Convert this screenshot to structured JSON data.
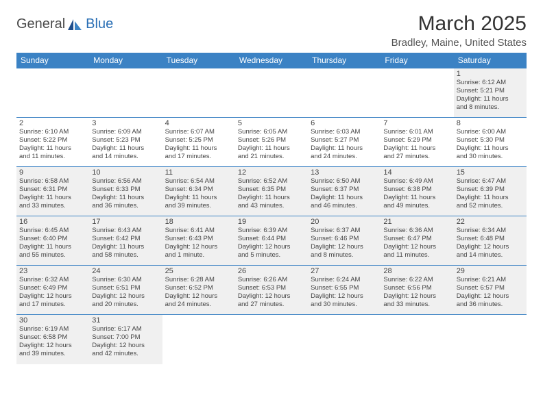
{
  "logo": {
    "part1": "General",
    "part2": "Blue"
  },
  "title": "March 2025",
  "location": "Bradley, Maine, United States",
  "colors": {
    "header_bg": "#3b82c4",
    "header_text": "#ffffff",
    "cell_border": "#3b82c4",
    "cell_bg": "#f0f0f0",
    "text": "#444444",
    "logo_blue": "#2a6fb5"
  },
  "fonts": {
    "title_size": 30,
    "location_size": 15,
    "th_size": 12,
    "daynum_size": 11,
    "body_size": 9.5
  },
  "weekdays": [
    "Sunday",
    "Monday",
    "Tuesday",
    "Wednesday",
    "Thursday",
    "Friday",
    "Saturday"
  ],
  "weeks": [
    [
      null,
      null,
      null,
      null,
      null,
      null,
      {
        "n": "1",
        "sunrise": "Sunrise: 6:12 AM",
        "sunset": "Sunset: 5:21 PM",
        "day1": "Daylight: 11 hours",
        "day2": "and 8 minutes."
      }
    ],
    [
      {
        "n": "2",
        "sunrise": "Sunrise: 6:10 AM",
        "sunset": "Sunset: 5:22 PM",
        "day1": "Daylight: 11 hours",
        "day2": "and 11 minutes."
      },
      {
        "n": "3",
        "sunrise": "Sunrise: 6:09 AM",
        "sunset": "Sunset: 5:23 PM",
        "day1": "Daylight: 11 hours",
        "day2": "and 14 minutes."
      },
      {
        "n": "4",
        "sunrise": "Sunrise: 6:07 AM",
        "sunset": "Sunset: 5:25 PM",
        "day1": "Daylight: 11 hours",
        "day2": "and 17 minutes."
      },
      {
        "n": "5",
        "sunrise": "Sunrise: 6:05 AM",
        "sunset": "Sunset: 5:26 PM",
        "day1": "Daylight: 11 hours",
        "day2": "and 21 minutes."
      },
      {
        "n": "6",
        "sunrise": "Sunrise: 6:03 AM",
        "sunset": "Sunset: 5:27 PM",
        "day1": "Daylight: 11 hours",
        "day2": "and 24 minutes."
      },
      {
        "n": "7",
        "sunrise": "Sunrise: 6:01 AM",
        "sunset": "Sunset: 5:29 PM",
        "day1": "Daylight: 11 hours",
        "day2": "and 27 minutes."
      },
      {
        "n": "8",
        "sunrise": "Sunrise: 6:00 AM",
        "sunset": "Sunset: 5:30 PM",
        "day1": "Daylight: 11 hours",
        "day2": "and 30 minutes."
      }
    ],
    [
      {
        "n": "9",
        "sunrise": "Sunrise: 6:58 AM",
        "sunset": "Sunset: 6:31 PM",
        "day1": "Daylight: 11 hours",
        "day2": "and 33 minutes."
      },
      {
        "n": "10",
        "sunrise": "Sunrise: 6:56 AM",
        "sunset": "Sunset: 6:33 PM",
        "day1": "Daylight: 11 hours",
        "day2": "and 36 minutes."
      },
      {
        "n": "11",
        "sunrise": "Sunrise: 6:54 AM",
        "sunset": "Sunset: 6:34 PM",
        "day1": "Daylight: 11 hours",
        "day2": "and 39 minutes."
      },
      {
        "n": "12",
        "sunrise": "Sunrise: 6:52 AM",
        "sunset": "Sunset: 6:35 PM",
        "day1": "Daylight: 11 hours",
        "day2": "and 43 minutes."
      },
      {
        "n": "13",
        "sunrise": "Sunrise: 6:50 AM",
        "sunset": "Sunset: 6:37 PM",
        "day1": "Daylight: 11 hours",
        "day2": "and 46 minutes."
      },
      {
        "n": "14",
        "sunrise": "Sunrise: 6:49 AM",
        "sunset": "Sunset: 6:38 PM",
        "day1": "Daylight: 11 hours",
        "day2": "and 49 minutes."
      },
      {
        "n": "15",
        "sunrise": "Sunrise: 6:47 AM",
        "sunset": "Sunset: 6:39 PM",
        "day1": "Daylight: 11 hours",
        "day2": "and 52 minutes."
      }
    ],
    [
      {
        "n": "16",
        "sunrise": "Sunrise: 6:45 AM",
        "sunset": "Sunset: 6:40 PM",
        "day1": "Daylight: 11 hours",
        "day2": "and 55 minutes."
      },
      {
        "n": "17",
        "sunrise": "Sunrise: 6:43 AM",
        "sunset": "Sunset: 6:42 PM",
        "day1": "Daylight: 11 hours",
        "day2": "and 58 minutes."
      },
      {
        "n": "18",
        "sunrise": "Sunrise: 6:41 AM",
        "sunset": "Sunset: 6:43 PM",
        "day1": "Daylight: 12 hours",
        "day2": "and 1 minute."
      },
      {
        "n": "19",
        "sunrise": "Sunrise: 6:39 AM",
        "sunset": "Sunset: 6:44 PM",
        "day1": "Daylight: 12 hours",
        "day2": "and 5 minutes."
      },
      {
        "n": "20",
        "sunrise": "Sunrise: 6:37 AM",
        "sunset": "Sunset: 6:46 PM",
        "day1": "Daylight: 12 hours",
        "day2": "and 8 minutes."
      },
      {
        "n": "21",
        "sunrise": "Sunrise: 6:36 AM",
        "sunset": "Sunset: 6:47 PM",
        "day1": "Daylight: 12 hours",
        "day2": "and 11 minutes."
      },
      {
        "n": "22",
        "sunrise": "Sunrise: 6:34 AM",
        "sunset": "Sunset: 6:48 PM",
        "day1": "Daylight: 12 hours",
        "day2": "and 14 minutes."
      }
    ],
    [
      {
        "n": "23",
        "sunrise": "Sunrise: 6:32 AM",
        "sunset": "Sunset: 6:49 PM",
        "day1": "Daylight: 12 hours",
        "day2": "and 17 minutes."
      },
      {
        "n": "24",
        "sunrise": "Sunrise: 6:30 AM",
        "sunset": "Sunset: 6:51 PM",
        "day1": "Daylight: 12 hours",
        "day2": "and 20 minutes."
      },
      {
        "n": "25",
        "sunrise": "Sunrise: 6:28 AM",
        "sunset": "Sunset: 6:52 PM",
        "day1": "Daylight: 12 hours",
        "day2": "and 24 minutes."
      },
      {
        "n": "26",
        "sunrise": "Sunrise: 6:26 AM",
        "sunset": "Sunset: 6:53 PM",
        "day1": "Daylight: 12 hours",
        "day2": "and 27 minutes."
      },
      {
        "n": "27",
        "sunrise": "Sunrise: 6:24 AM",
        "sunset": "Sunset: 6:55 PM",
        "day1": "Daylight: 12 hours",
        "day2": "and 30 minutes."
      },
      {
        "n": "28",
        "sunrise": "Sunrise: 6:22 AM",
        "sunset": "Sunset: 6:56 PM",
        "day1": "Daylight: 12 hours",
        "day2": "and 33 minutes."
      },
      {
        "n": "29",
        "sunrise": "Sunrise: 6:21 AM",
        "sunset": "Sunset: 6:57 PM",
        "day1": "Daylight: 12 hours",
        "day2": "and 36 minutes."
      }
    ],
    [
      {
        "n": "30",
        "sunrise": "Sunrise: 6:19 AM",
        "sunset": "Sunset: 6:58 PM",
        "day1": "Daylight: 12 hours",
        "day2": "and 39 minutes."
      },
      {
        "n": "31",
        "sunrise": "Sunrise: 6:17 AM",
        "sunset": "Sunset: 7:00 PM",
        "day1": "Daylight: 12 hours",
        "day2": "and 42 minutes."
      },
      null,
      null,
      null,
      null,
      null
    ]
  ]
}
